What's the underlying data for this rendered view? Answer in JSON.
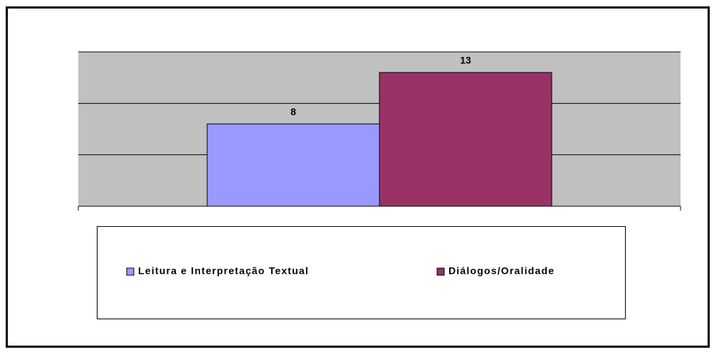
{
  "chart_data": {
    "type": "bar",
    "categories": [
      null
    ],
    "series": [
      {
        "name": "Leitura e Interpretação Textual",
        "color": "#9999ff",
        "values": [
          8
        ]
      },
      {
        "name": "Diálogos/Oralidade",
        "color": "#993366",
        "values": [
          13
        ]
      }
    ],
    "ylim": [
      0,
      15
    ],
    "yticks": [
      0,
      5,
      10,
      15
    ],
    "grid": true,
    "plot_background": "#c0c0c0",
    "legend": "bottom"
  }
}
